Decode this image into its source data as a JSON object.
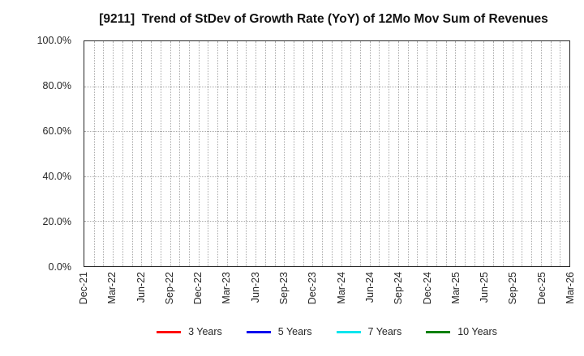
{
  "chart_data": {
    "type": "line",
    "title": "[9211]  Trend of StDev of Growth Rate (YoY) of 12Mo Mov Sum of Revenues",
    "xlabel": "",
    "ylabel": "",
    "ylim": [
      0,
      100
    ],
    "y_tick_step_percent": 20,
    "y_tick_labels": [
      "0.0%",
      "20.0%",
      "40.0%",
      "60.0%",
      "80.0%",
      "100.0%"
    ],
    "x_tick_labels": [
      "Dec-21",
      "Mar-22",
      "Jun-22",
      "Sep-22",
      "Dec-22",
      "Mar-23",
      "Jun-23",
      "Sep-23",
      "Dec-23",
      "Mar-24",
      "Jun-24",
      "Sep-24",
      "Dec-24",
      "Mar-25",
      "Jun-25",
      "Sep-25",
      "Dec-25",
      "Mar-26"
    ],
    "x_months_per_labeled_tick": 3,
    "x_minor_gridline_interval_months": 1,
    "grid": true,
    "legend_position": "bottom",
    "series": [
      {
        "name": "3 Years",
        "color": "#ff0000",
        "values": []
      },
      {
        "name": "5 Years",
        "color": "#0000ee",
        "values": []
      },
      {
        "name": "7 Years",
        "color": "#00e5ee",
        "values": []
      },
      {
        "name": "10 Years",
        "color": "#008000",
        "values": []
      }
    ]
  },
  "colors": {
    "background": "#ffffff",
    "plot_border": "#262626",
    "grid": "#ababab",
    "text": "#262626"
  }
}
